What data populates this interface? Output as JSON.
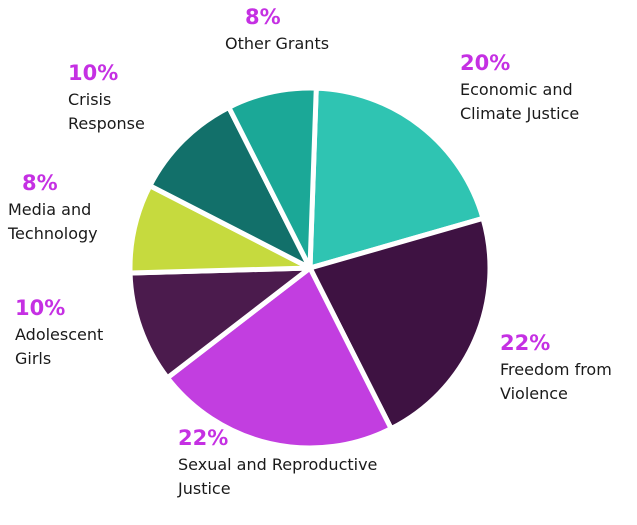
{
  "chart_data": {
    "type": "pie",
    "categories": [
      "Economic and Climate Justice",
      "Freedom from Violence",
      "Sexual and Reproductive Justice",
      "Adolescent Girls",
      "Media and Technology",
      "Crisis Response",
      "Other Grants"
    ],
    "values": [
      20,
      22,
      22,
      10,
      8,
      10,
      8
    ],
    "value_labels": [
      "20%",
      "22%",
      "22%",
      "10%",
      "8%",
      "10%",
      "8%"
    ],
    "colors": [
      "#2fc4b2",
      "#3e1242",
      "#c23ee0",
      "#4b1b4d",
      "#c6da3e",
      "#12706a",
      "#1ba897"
    ]
  }
}
